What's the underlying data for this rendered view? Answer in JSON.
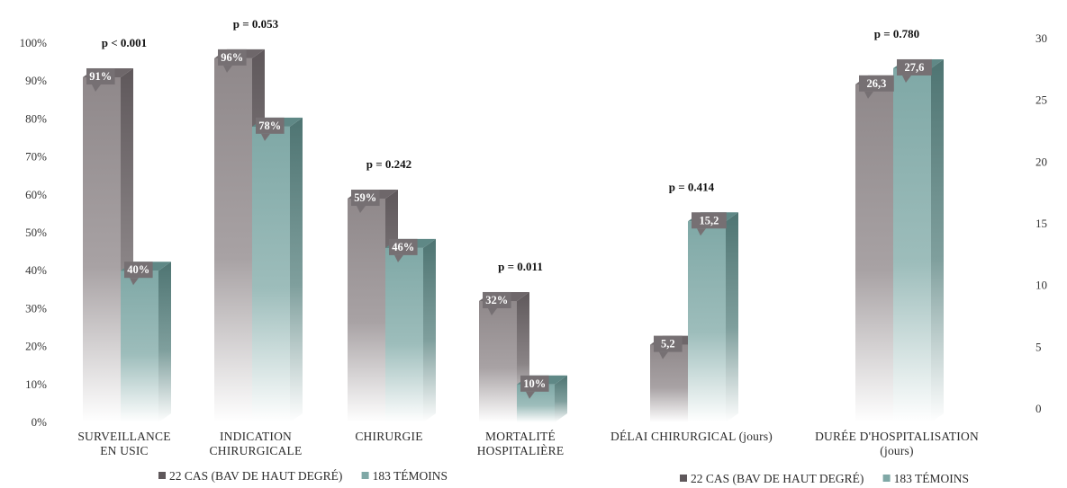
{
  "colors": {
    "cases_front": "#8f888a",
    "cases_side": "#5f585b",
    "cases_top": "#6e676a",
    "controls_front": "#7fa8a6",
    "controls_side": "#4e7472",
    "controls_top": "#5f8886",
    "label_box": "#767073"
  },
  "chart_data": [
    {
      "type": "bar",
      "y_axis": {
        "min": 0,
        "max": 100,
        "step": 10,
        "suffix": "%",
        "position": "left"
      },
      "grid": false,
      "categories": [
        {
          "lines": [
            "SURVEILLANCE",
            "EN USIC"
          ],
          "p_value": "p < 0.001"
        },
        {
          "lines": [
            "INDICATION",
            "CHIRURGICALE"
          ],
          "p_value": "p = 0.053"
        },
        {
          "lines": [
            "CHIRURGIE"
          ],
          "p_value": "p = 0.242"
        },
        {
          "lines": [
            "MORTALITÉ",
            "HOSPITALIÈRE"
          ],
          "p_value": "p = 0.011"
        }
      ],
      "series": [
        {
          "name": "22 CAS (BAV DE HAUT DEGRÉ)",
          "values": [
            91,
            96,
            59,
            32
          ],
          "labels": [
            "91%",
            "96%",
            "59%",
            "32%"
          ]
        },
        {
          "name": "183 TÉMOINS",
          "values": [
            40,
            78,
            46,
            10
          ],
          "labels": [
            "40%",
            "78%",
            "46%",
            "10%"
          ]
        }
      ],
      "legend": {
        "placement": "bottom",
        "items": [
          "22 CAS (BAV DE HAUT DEGRÉ)",
          "183 TÉMOINS"
        ]
      }
    },
    {
      "type": "bar",
      "y_axis": {
        "min": 0,
        "max": 30,
        "step": 5,
        "suffix": "",
        "position": "right"
      },
      "grid": false,
      "categories": [
        {
          "lines": [
            "DÉLAI CHIRURGICAL (jours)"
          ],
          "p_value": "p = 0.414"
        },
        {
          "lines": [
            "DURÉE D'HOSPITALISATION",
            "(jours)"
          ],
          "p_value": "p = 0.780"
        }
      ],
      "series": [
        {
          "name": "22 CAS (BAV DE HAUT DEGRÉ)",
          "values": [
            5.2,
            26.3
          ],
          "labels": [
            "5,2",
            "26,3"
          ]
        },
        {
          "name": "183 TÉMOINS",
          "values": [
            15.2,
            27.6
          ],
          "labels": [
            "15,2",
            "27,6"
          ]
        }
      ],
      "legend": {
        "placement": "bottom",
        "items": [
          "22 CAS (BAV DE HAUT DEGRÉ)",
          "183 TÉMOINS"
        ]
      }
    }
  ]
}
